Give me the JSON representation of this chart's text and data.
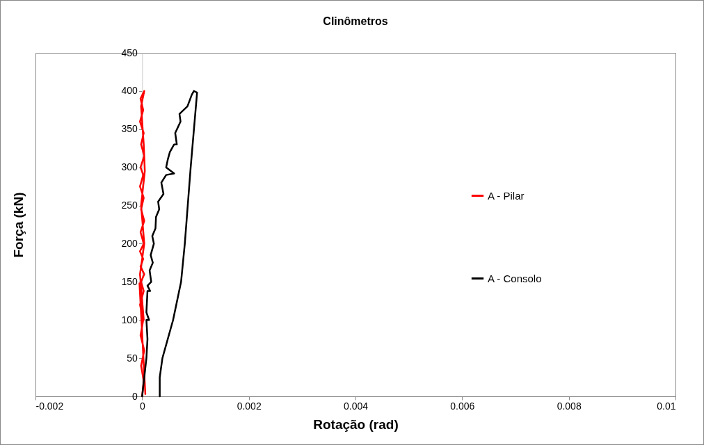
{
  "chart_data": {
    "type": "line",
    "title": "Clinômetros",
    "xlabel": "Rotação (rad)",
    "ylabel": "Força (kN)",
    "xlim": [
      -0.002,
      0.01
    ],
    "xticks": [
      -0.002,
      0,
      0.002,
      0.004,
      0.006,
      0.008,
      0.01
    ],
    "ylim": [
      0,
      450
    ],
    "yticks": [
      0,
      50,
      100,
      150,
      200,
      250,
      300,
      350,
      400,
      450
    ],
    "grid": false,
    "legend": "right",
    "marker": "none",
    "line_style": "solid",
    "series": [
      {
        "name": "A - Pilar",
        "color": "#ff0000",
        "x": [
          0,
          3e-05,
          -2e-05,
          4e-05,
          -3e-05,
          2e-05,
          -4e-05,
          3e-05,
          -2e-05,
          4e-05,
          -3e-05,
          2e-05,
          -4e-05,
          3e-05,
          -3e-05,
          4e-05,
          -2e-05,
          3e-05,
          -4e-05,
          2e-05,
          -3e-05,
          4e-05,
          -2e-05,
          3e-05,
          -4e-05,
          2e-05,
          -3e-05,
          4e-05,
          -2e-05,
          3e-05,
          5e-05,
          -2e-05,
          4e-05,
          -4e-05,
          3e-05,
          -5e-05,
          6e-05
        ],
        "values": [
          0,
          20,
          40,
          60,
          80,
          100,
          120,
          138,
          150,
          160,
          170,
          180,
          190,
          200,
          215,
          230,
          245,
          260,
          275,
          290,
          300,
          315,
          330,
          345,
          360,
          375,
          390,
          400,
          380,
          330,
          295,
          250,
          200,
          160,
          100,
          148,
          3
        ]
      },
      {
        "name": "A - Consolo",
        "color": "#000000",
        "x": [
          0,
          8e-05,
          0.0001,
          8e-05,
          0.00013,
          8e-05,
          0.0001,
          0.00015,
          0.0001,
          0.00017,
          0.00014,
          0.0002,
          0.00016,
          0.00022,
          0.00019,
          0.00025,
          0.00026,
          0.00032,
          0.0003,
          0.0004,
          0.00036,
          0.00045,
          0.0006,
          0.00045,
          0.00048,
          0.00052,
          0.0006,
          0.00065,
          0.00062,
          0.00072,
          0.0007,
          0.00085,
          0.00093,
          0.00097,
          0.00103,
          0.00091,
          0.0008,
          0.00073,
          0.00058,
          0.00038,
          0.00033,
          0.00033
        ],
        "values": [
          0,
          50,
          75,
          100,
          100,
          110,
          138,
          138,
          145,
          150,
          165,
          175,
          185,
          200,
          210,
          220,
          235,
          245,
          255,
          265,
          280,
          290,
          292,
          300,
          310,
          320,
          330,
          330,
          345,
          360,
          370,
          380,
          395,
          400,
          398,
          300,
          200,
          150,
          100,
          50,
          25,
          0
        ]
      }
    ]
  }
}
